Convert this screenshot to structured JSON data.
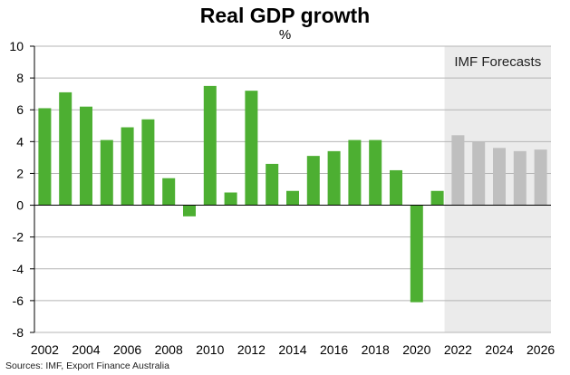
{
  "chart_data": {
    "type": "bar",
    "title": "Real GDP growth",
    "unit": "%",
    "source": "Sources: IMF, Export Finance Australia",
    "forecast_label": "IMF Forecasts",
    "forecast_from": 2022,
    "ylim": [
      -8,
      10
    ],
    "yticks": [
      -8,
      -6,
      -4,
      -2,
      0,
      2,
      4,
      6,
      8,
      10
    ],
    "xticks": [
      2002,
      2004,
      2006,
      2008,
      2010,
      2012,
      2014,
      2016,
      2018,
      2020,
      2022,
      2024,
      2026
    ],
    "grid": true,
    "categories": [
      2002,
      2003,
      2004,
      2005,
      2006,
      2007,
      2008,
      2009,
      2010,
      2011,
      2012,
      2013,
      2014,
      2015,
      2016,
      2017,
      2018,
      2019,
      2020,
      2021,
      2022,
      2023,
      2024,
      2025,
      2026
    ],
    "values": [
      6.1,
      7.1,
      6.2,
      4.1,
      4.9,
      5.4,
      1.7,
      -0.7,
      7.5,
      0.8,
      7.2,
      2.6,
      0.9,
      3.1,
      3.4,
      4.1,
      4.1,
      2.2,
      -6.1,
      0.9,
      4.4,
      4.0,
      3.6,
      3.4,
      3.5
    ],
    "colors": {
      "actual": "#4daf32",
      "forecast": "#bfbfbf",
      "forecast_band": "#ebebeb",
      "grid": "#b5b5b5",
      "axis": "#000000"
    }
  }
}
